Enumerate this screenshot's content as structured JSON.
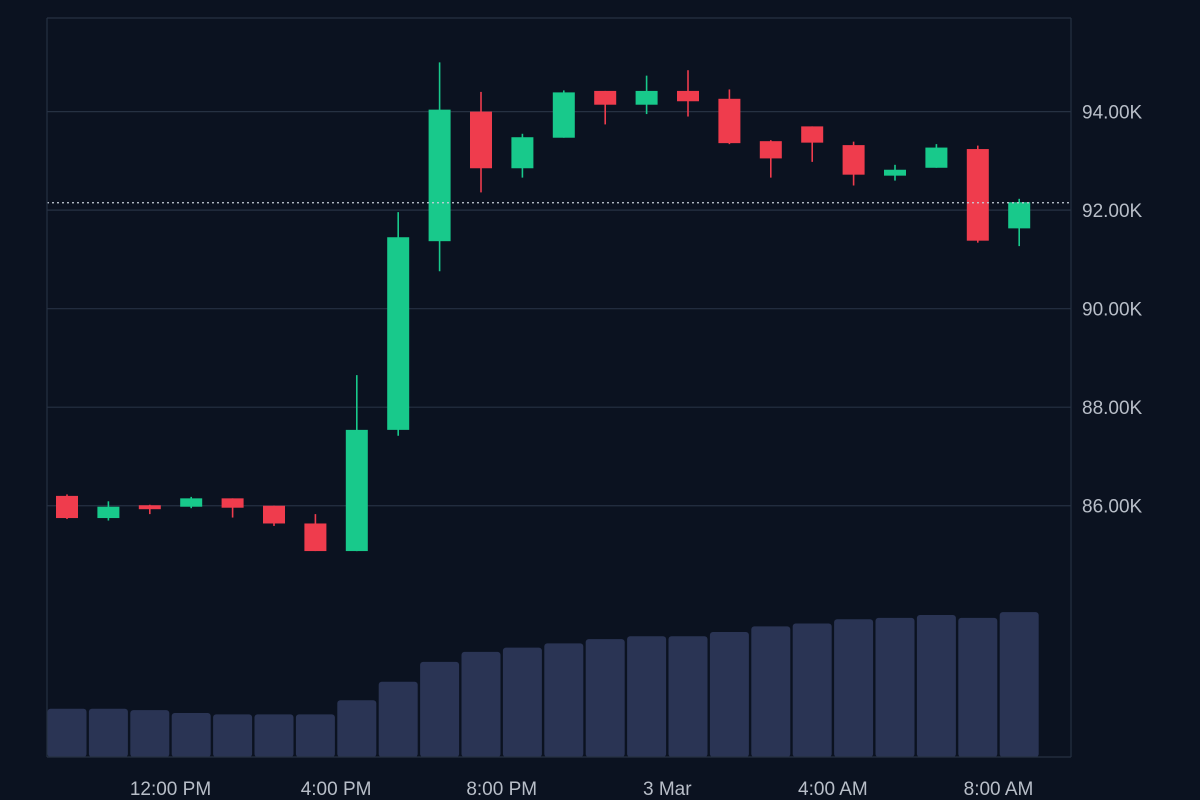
{
  "theme": {
    "background": "#0b1220",
    "grid": "#263142",
    "up": "#18c98b",
    "down": "#ef3c4d",
    "volume": "#2a3454",
    "text": "#b8bec8",
    "last_price_line": "#c9d1dc"
  },
  "chart_data": {
    "type": "candlestick",
    "title": "",
    "xlabel": "",
    "ylabel": "",
    "ylim": [
      80900,
      95900
    ],
    "grid": true,
    "legend": "none",
    "y_ticks": [
      {
        "value": 86000,
        "label": "86.00K"
      },
      {
        "value": 88000,
        "label": "88.00K"
      },
      {
        "value": 90000,
        "label": "90.00K"
      },
      {
        "value": 92000,
        "label": "92.00K"
      },
      {
        "value": 94000,
        "label": "94.00K"
      }
    ],
    "x_ticks": [
      {
        "index": 2.5,
        "label": "12:00 PM"
      },
      {
        "index": 6.5,
        "label": "4:00 PM"
      },
      {
        "index": 10.5,
        "label": "8:00 PM"
      },
      {
        "index": 14.5,
        "label": "3 Mar"
      },
      {
        "index": 18.5,
        "label": "4:00 AM"
      },
      {
        "index": 22.5,
        "label": "8:00 AM"
      }
    ],
    "last_price": 92150,
    "candles": [
      {
        "open": 86200,
        "high": 86230,
        "low": 85730,
        "close": 85750
      },
      {
        "open": 85750,
        "high": 86090,
        "low": 85700,
        "close": 85980
      },
      {
        "open": 86010,
        "high": 86020,
        "low": 85830,
        "close": 85930
      },
      {
        "open": 85980,
        "high": 86180,
        "low": 85950,
        "close": 86150
      },
      {
        "open": 86150,
        "high": 86150,
        "low": 85760,
        "close": 85960
      },
      {
        "open": 86000,
        "high": 86000,
        "low": 85590,
        "close": 85640
      },
      {
        "open": 85640,
        "high": 85830,
        "low": 85080,
        "close": 85080
      },
      {
        "open": 85080,
        "high": 88650,
        "low": 85080,
        "close": 87540
      },
      {
        "open": 87540,
        "high": 91960,
        "low": 87420,
        "close": 91450
      },
      {
        "open": 91370,
        "high": 95000,
        "low": 90760,
        "close": 94040
      },
      {
        "open": 94000,
        "high": 94400,
        "low": 92360,
        "close": 92850
      },
      {
        "open": 92850,
        "high": 93550,
        "low": 92660,
        "close": 93480
      },
      {
        "open": 93470,
        "high": 94430,
        "low": 93470,
        "close": 94390
      },
      {
        "open": 94420,
        "high": 94420,
        "low": 93740,
        "close": 94140
      },
      {
        "open": 94140,
        "high": 94730,
        "low": 93950,
        "close": 94420
      },
      {
        "open": 94420,
        "high": 94840,
        "low": 93900,
        "close": 94210
      },
      {
        "open": 94260,
        "high": 94450,
        "low": 93340,
        "close": 93360
      },
      {
        "open": 93400,
        "high": 93420,
        "low": 92660,
        "close": 93050
      },
      {
        "open": 93700,
        "high": 93700,
        "low": 92980,
        "close": 93370
      },
      {
        "open": 93320,
        "high": 93390,
        "low": 92500,
        "close": 92720
      },
      {
        "open": 92700,
        "high": 92920,
        "low": 92600,
        "close": 92820
      },
      {
        "open": 92860,
        "high": 93340,
        "low": 92860,
        "close": 93270
      },
      {
        "open": 93240,
        "high": 93310,
        "low": 91340,
        "close": 91380
      },
      {
        "open": 91630,
        "high": 92230,
        "low": 91270,
        "close": 92160
      }
    ],
    "volume": [
      0.34,
      0.34,
      0.33,
      0.31,
      0.3,
      0.3,
      0.3,
      0.4,
      0.53,
      0.67,
      0.74,
      0.77,
      0.8,
      0.83,
      0.85,
      0.85,
      0.88,
      0.92,
      0.94,
      0.97,
      0.98,
      1.0,
      0.98,
      1.02
    ]
  }
}
